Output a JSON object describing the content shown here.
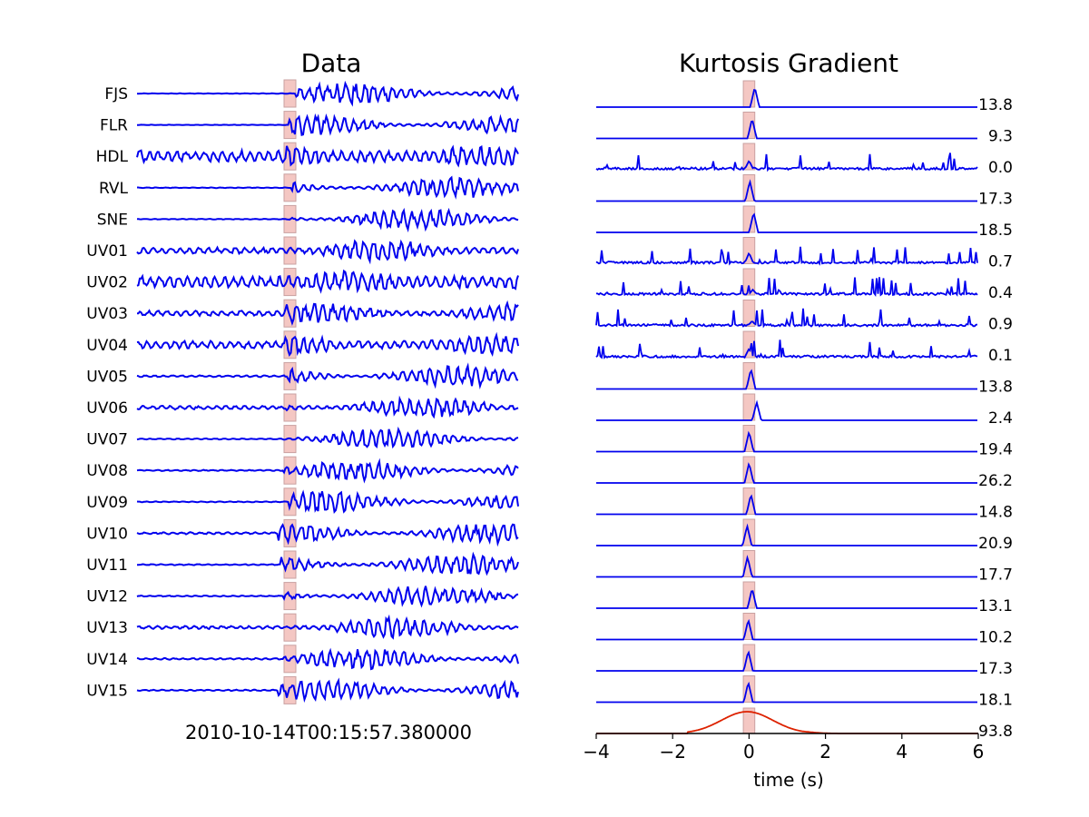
{
  "chart_data": [
    {
      "type": "line",
      "title": "Data",
      "subtitle": "2010-10-14T00:15:57.380000",
      "stations": [
        "FJS",
        "FLR",
        "HDL",
        "RVL",
        "SNE",
        "UV01",
        "UV02",
        "UV03",
        "UV04",
        "UV05",
        "UV06",
        "UV07",
        "UV08",
        "UV09",
        "UV10",
        "UV11",
        "UV12",
        "UV13",
        "UV14",
        "UV15"
      ],
      "series_color": "#0000ee",
      "pick_window_color": "#f4c7c3"
    },
    {
      "type": "line",
      "title": "Kurtosis Gradient",
      "xlabel": "time (s)",
      "xlim": [
        -4,
        6
      ],
      "xticks": [
        "−4",
        "−2",
        "0",
        "2",
        "4",
        "6"
      ],
      "pick_window": [
        -0.15,
        0.15
      ],
      "stations": [
        "FJS",
        "FLR",
        "HDL",
        "RVL",
        "SNE",
        "UV01",
        "UV02",
        "UV03",
        "UV04",
        "UV05",
        "UV06",
        "UV07",
        "UV08",
        "UV09",
        "UV10",
        "UV11",
        "UV12",
        "UV13",
        "UV14",
        "UV15"
      ],
      "values": [
        "13.8",
        "9.3",
        "0.0",
        "17.3",
        "18.5",
        "0.7",
        "0.4",
        "0.9",
        "0.1",
        "13.8",
        "2.4",
        "19.4",
        "26.2",
        "14.8",
        "20.9",
        "17.7",
        "13.1",
        "10.2",
        "17.3",
        "18.1"
      ],
      "stack_value": "93.8",
      "series_color": "#0000ee",
      "stack_color": "#dd2200"
    }
  ]
}
